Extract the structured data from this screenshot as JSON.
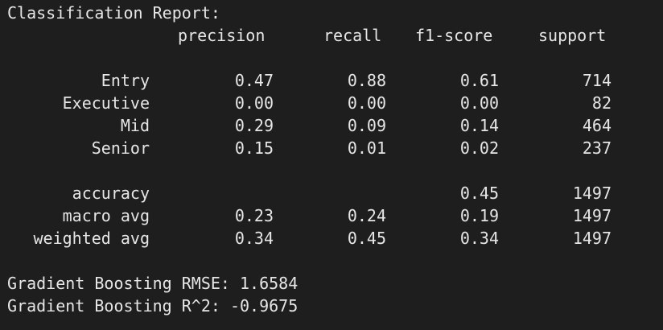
{
  "report": {
    "title": "Classification Report:",
    "headers": {
      "precision": "precision",
      "recall": "recall",
      "f1": "f1-score",
      "support": "support"
    },
    "classes": [
      {
        "name": "Entry",
        "precision": "0.47",
        "recall": "0.88",
        "f1": "0.61",
        "support": "714"
      },
      {
        "name": "Executive",
        "precision": "0.00",
        "recall": "0.00",
        "f1": "0.00",
        "support": "82"
      },
      {
        "name": "Mid",
        "precision": "0.29",
        "recall": "0.09",
        "f1": "0.14",
        "support": "464"
      },
      {
        "name": "Senior",
        "precision": "0.15",
        "recall": "0.01",
        "f1": "0.02",
        "support": "237"
      }
    ],
    "summary": [
      {
        "name": "accuracy",
        "precision": "",
        "recall": "",
        "f1": "0.45",
        "support": "1497"
      },
      {
        "name": "macro avg",
        "precision": "0.23",
        "recall": "0.24",
        "f1": "0.19",
        "support": "1497"
      },
      {
        "name": "weighted avg",
        "precision": "0.34",
        "recall": "0.45",
        "f1": "0.34",
        "support": "1497"
      }
    ]
  },
  "metrics": {
    "rmse_line": "Gradient Boosting RMSE: 1.6584",
    "r2_line": "Gradient Boosting R^2: -0.9675"
  }
}
